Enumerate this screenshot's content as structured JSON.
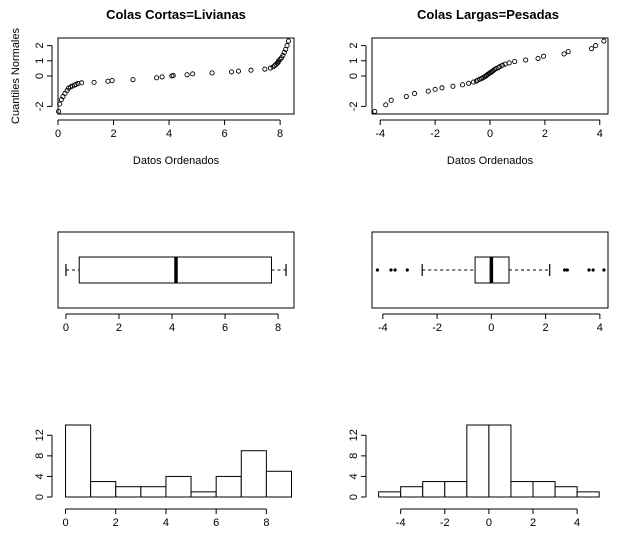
{
  "chart_data": [
    {
      "type": "scatter",
      "panel": "qq-left",
      "title": "Colas Cortas=Livianas",
      "xlabel": "Datos Ordenados",
      "ylabel": "Cuantiles Normales",
      "xlim": [
        0,
        8.5
      ],
      "ylim": [
        -2.5,
        2.5
      ],
      "xticks": [
        "0",
        "2",
        "4",
        "6",
        "8"
      ],
      "yticks": [
        "-2",
        "0",
        "1",
        "2"
      ],
      "x": [
        0.02,
        0.06,
        0.12,
        0.18,
        0.25,
        0.33,
        0.38,
        0.45,
        0.52,
        0.6,
        0.65,
        0.72,
        0.85,
        1.3,
        1.8,
        1.95,
        2.7,
        3.55,
        3.75,
        4.1,
        4.15,
        4.65,
        4.85,
        5.55,
        6.25,
        6.5,
        6.95,
        7.45,
        7.65,
        7.75,
        7.8,
        7.85,
        7.9,
        7.93,
        7.95,
        8.0,
        8.05,
        8.1,
        8.15,
        8.2,
        8.25,
        8.3
      ],
      "y": [
        -2.33,
        -1.85,
        -1.55,
        -1.35,
        -1.15,
        -0.95,
        -0.8,
        -0.72,
        -0.66,
        -0.6,
        -0.55,
        -0.5,
        -0.45,
        -0.42,
        -0.35,
        -0.3,
        -0.24,
        -0.12,
        -0.06,
        0.0,
        0.04,
        0.08,
        0.14,
        0.2,
        0.27,
        0.32,
        0.38,
        0.45,
        0.52,
        0.6,
        0.68,
        0.76,
        0.84,
        0.92,
        1.0,
        1.1,
        1.2,
        1.35,
        1.55,
        1.75,
        2.0,
        2.3
      ]
    },
    {
      "type": "scatter",
      "panel": "qq-right",
      "title": "Colas Largas=Pesadas",
      "xlabel": "Datos Ordenados",
      "ylabel": "",
      "xlim": [
        -4.3,
        4.3
      ],
      "ylim": [
        -2.5,
        2.5
      ],
      "xticks": [
        "-4",
        "-2",
        "0",
        "2",
        "4"
      ],
      "yticks": [
        "-2",
        "0",
        "1",
        "2"
      ],
      "x": [
        -4.2,
        -3.8,
        -3.6,
        -3.05,
        -2.75,
        -2.25,
        -2.0,
        -1.75,
        -1.35,
        -1.0,
        -0.78,
        -0.6,
        -0.5,
        -0.45,
        -0.38,
        -0.3,
        -0.25,
        -0.2,
        -0.15,
        -0.12,
        -0.08,
        -0.04,
        0.0,
        0.04,
        0.08,
        0.12,
        0.16,
        0.22,
        0.3,
        0.36,
        0.45,
        0.55,
        0.7,
        0.9,
        1.3,
        1.75,
        1.95,
        2.7,
        2.85,
        3.7,
        3.85,
        4.15
      ],
      "y": [
        -2.33,
        -1.9,
        -1.6,
        -1.35,
        -1.15,
        -1.0,
        -0.88,
        -0.78,
        -0.68,
        -0.58,
        -0.48,
        -0.4,
        -0.34,
        -0.28,
        -0.22,
        -0.16,
        -0.1,
        -0.05,
        0.0,
        0.05,
        0.1,
        0.15,
        0.2,
        0.25,
        0.3,
        0.36,
        0.42,
        0.48,
        0.55,
        0.62,
        0.7,
        0.78,
        0.86,
        0.95,
        1.05,
        1.15,
        1.3,
        1.45,
        1.6,
        1.8,
        2.0,
        2.3
      ]
    },
    {
      "type": "boxplot",
      "panel": "box-left",
      "xlim": [
        -0.3,
        8.6
      ],
      "xticks": [
        "0",
        "2",
        "4",
        "6",
        "8"
      ],
      "whisker_low": 0.0,
      "q1": 0.5,
      "median": 4.15,
      "q3": 7.75,
      "whisker_high": 8.3,
      "outliers": []
    },
    {
      "type": "boxplot",
      "panel": "box-right",
      "xlim": [
        -4.4,
        4.3
      ],
      "xticks": [
        "-4",
        "-2",
        "0",
        "2",
        "4"
      ],
      "whisker_low": -2.55,
      "q1": -0.6,
      "median": 0.0,
      "q3": 0.65,
      "whisker_high": 2.15,
      "outliers": [
        -4.2,
        -3.7,
        -3.55,
        -3.1,
        2.7,
        2.8,
        3.6,
        3.75,
        4.15
      ]
    },
    {
      "type": "bar",
      "panel": "hist-left",
      "xlim": [
        -0.3,
        9.1
      ],
      "ylim": [
        0,
        14
      ],
      "xticks": [
        "0",
        "2",
        "4",
        "6",
        "8"
      ],
      "yticks": [
        "0",
        "4",
        "8",
        "12"
      ],
      "bin_edges": [
        0,
        1,
        2,
        3,
        4,
        5,
        6,
        7,
        8,
        9
      ],
      "values": [
        14,
        3,
        2,
        2,
        4,
        1,
        4,
        9,
        5
      ]
    },
    {
      "type": "bar",
      "panel": "hist-right",
      "xlim": [
        -5.3,
        5.4
      ],
      "ylim": [
        0,
        14
      ],
      "xticks": [
        "-4",
        "-2",
        "0",
        "2",
        "4"
      ],
      "yticks": [
        "0",
        "4",
        "8",
        "12"
      ],
      "bin_edges": [
        -5,
        -4,
        -3,
        -2,
        -1,
        0,
        1,
        2,
        3,
        4,
        5
      ],
      "values": [
        1,
        2,
        3,
        3,
        14,
        14,
        3,
        3,
        2,
        1
      ]
    }
  ]
}
